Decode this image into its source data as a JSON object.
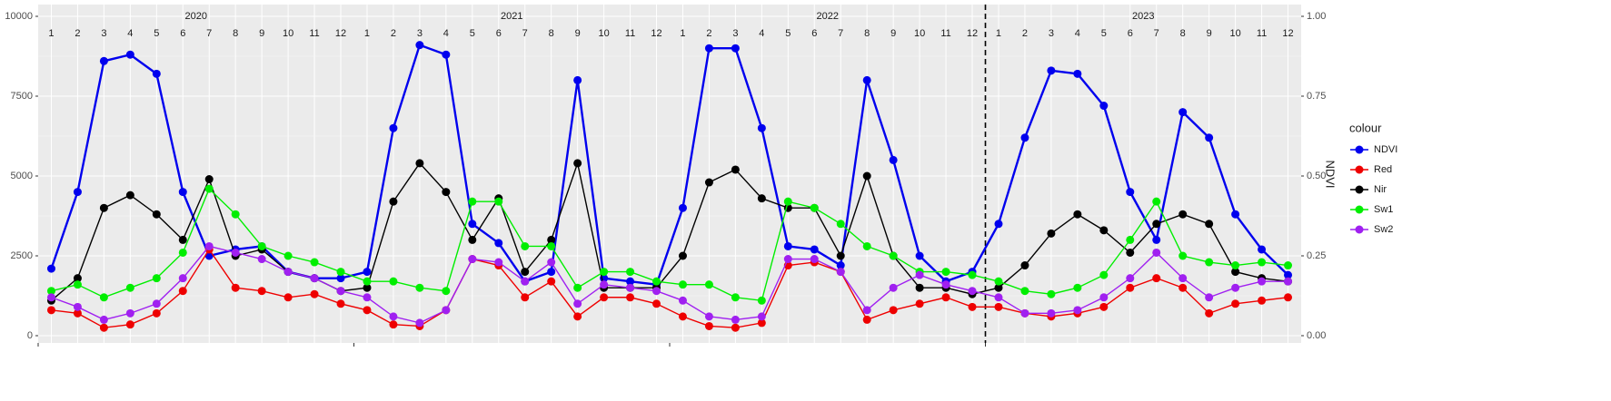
{
  "chart_data": {
    "type": "line",
    "years": [
      "2020",
      "2021",
      "2022",
      "2023"
    ],
    "months": [
      "1",
      "2",
      "3",
      "4",
      "5",
      "6",
      "7",
      "8",
      "9",
      "10",
      "11",
      "12"
    ],
    "x": [
      0.5,
      1.5,
      2.5,
      3.5,
      4.5,
      5.5,
      6.5,
      7.5,
      8.5,
      9.5,
      10.5,
      11.5,
      12.5,
      13.5,
      14.5,
      15.5,
      16.5,
      17.5,
      18.5,
      19.5,
      20.5,
      21.5,
      22.5,
      23.5,
      24.5,
      25.5,
      26.5,
      27.5,
      28.5,
      29.5,
      30.5,
      31.5,
      32.5,
      33.5,
      34.5,
      35.5,
      36.5,
      37.5,
      38.5,
      39.5,
      40.5,
      41.5,
      42.5,
      43.5,
      44.5,
      45.5,
      46.5,
      47.5
    ],
    "xlim": [
      0,
      48
    ],
    "vline": 36,
    "ylim": [
      0,
      10000
    ],
    "yticks": [
      0,
      2500,
      5000,
      7500,
      10000
    ],
    "y2lim": [
      0,
      1
    ],
    "y2ticks": [
      {
        "value": 0,
        "label": "0.00"
      },
      {
        "value": 0.25,
        "label": "0.25"
      },
      {
        "value": 0.5,
        "label": "0.50"
      },
      {
        "value": 0.75,
        "label": "0.75"
      },
      {
        "value": 1,
        "label": "1.00"
      }
    ],
    "y2label": "NDVI",
    "legend_title": "colour",
    "legend": "right",
    "grid": true,
    "series": [
      {
        "name": "NDVI",
        "color": "#0000ee",
        "axis": "y2",
        "values": [
          0.21,
          0.45,
          0.86,
          0.88,
          0.82,
          0.45,
          0.25,
          0.27,
          0.28,
          0.2,
          0.18,
          0.18,
          0.2,
          0.65,
          0.91,
          0.88,
          0.35,
          0.29,
          0.17,
          0.2,
          0.8,
          0.18,
          0.17,
          0.16,
          0.4,
          0.9,
          0.9,
          0.65,
          0.28,
          0.27,
          0.22,
          0.8,
          0.55,
          0.25,
          0.17,
          0.2,
          0.35,
          0.62,
          0.83,
          0.82,
          0.72,
          0.45,
          0.3,
          0.7,
          0.62,
          0.38,
          0.27,
          0.19
        ]
      },
      {
        "name": "Red",
        "color": "#ee0000",
        "values": [
          800,
          700,
          250,
          350,
          700,
          1400,
          2700,
          1500,
          1400,
          1200,
          1300,
          1000,
          800,
          350,
          300,
          800,
          2400,
          2200,
          1200,
          1700,
          600,
          1200,
          1200,
          1000,
          600,
          300,
          250,
          400,
          2200,
          2300,
          2000,
          500,
          800,
          1000,
          1200,
          900,
          900,
          700,
          600,
          700,
          900,
          1500,
          1800,
          1500,
          700,
          1000,
          1100,
          1200
        ]
      },
      {
        "name": "Nir",
        "color": "#000000",
        "values": [
          1100,
          1800,
          4000,
          4400,
          3800,
          3000,
          4900,
          2500,
          2700,
          2000,
          1800,
          1400,
          1500,
          4200,
          5400,
          4500,
          3000,
          4300,
          2000,
          3000,
          5400,
          1500,
          1500,
          1500,
          2500,
          4800,
          5200,
          4300,
          4000,
          4000,
          2500,
          5000,
          2500,
          1500,
          1500,
          1300,
          1500,
          2200,
          3200,
          3800,
          3300,
          2600,
          3500,
          3800,
          3500,
          2000,
          1800,
          1700
        ]
      },
      {
        "name": "Sw1",
        "color": "#00ee00",
        "values": [
          1400,
          1600,
          1200,
          1500,
          1800,
          2600,
          4600,
          3800,
          2800,
          2500,
          2300,
          2000,
          1700,
          1700,
          1500,
          1400,
          4200,
          4200,
          2800,
          2800,
          1500,
          2000,
          2000,
          1700,
          1600,
          1600,
          1200,
          1100,
          4200,
          4000,
          3500,
          2800,
          2500,
          2000,
          2000,
          1900,
          1700,
          1400,
          1300,
          1500,
          1900,
          3000,
          4200,
          2500,
          2300,
          2200,
          2300,
          2200
        ]
      },
      {
        "name": "Sw2",
        "color": "#a020f0",
        "values": [
          1200,
          900,
          500,
          700,
          1000,
          1800,
          2800,
          2600,
          2400,
          2000,
          1800,
          1400,
          1200,
          600,
          400,
          800,
          2400,
          2300,
          1700,
          2300,
          1000,
          1600,
          1500,
          1400,
          1100,
          600,
          500,
          600,
          2400,
          2400,
          2000,
          800,
          1500,
          1900,
          1600,
          1400,
          1200,
          700,
          700,
          800,
          1200,
          1800,
          2600,
          1800,
          1200,
          1500,
          1700,
          1700
        ]
      }
    ]
  }
}
